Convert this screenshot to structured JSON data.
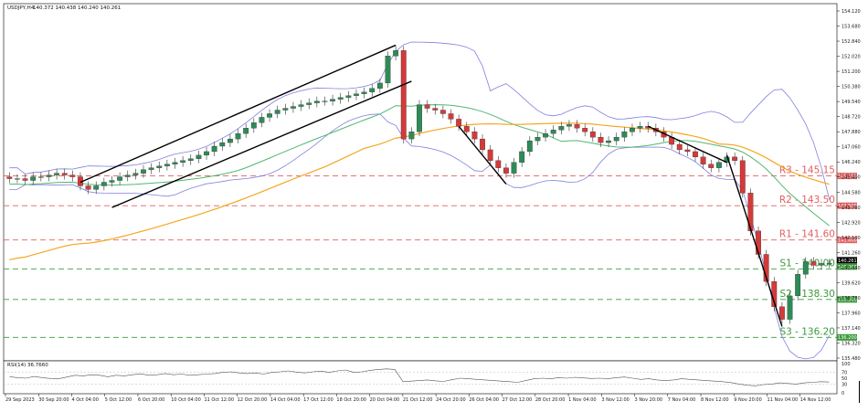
{
  "header": {
    "symbol": "USDJPY,H4",
    "ohlc": "140.372 140.438 140.240 140.261"
  },
  "price_axis": {
    "ticks": [
      "154.120",
      "153.680",
      "152.840",
      "152.020",
      "151.200",
      "150.380",
      "149.540",
      "148.720",
      "147.880",
      "147.060",
      "146.240",
      "145.400",
      "144.580",
      "143.760",
      "142.920",
      "142.100",
      "141.260",
      "140.440",
      "139.620",
      "138.780",
      "137.960",
      "137.140",
      "136.320",
      "135.480"
    ],
    "current_price_label": "140.261",
    "current_price_label_2": "140.000",
    "level_tags": {
      "r3": "145.150",
      "r2": "143.500",
      "r1": "141.600",
      "s2": "138.300",
      "s3": "136.200"
    }
  },
  "levels": [
    {
      "id": "r3",
      "label": "R3 - 145.15",
      "price": 145.15,
      "color": "#e06060",
      "kind": "resistance"
    },
    {
      "id": "r2",
      "label": "R2 - 143.50",
      "price": 143.5,
      "color": "#e06060",
      "kind": "resistance"
    },
    {
      "id": "r1",
      "label": "R1 - 141.60",
      "price": 141.6,
      "color": "#e06060",
      "kind": "resistance"
    },
    {
      "id": "s1",
      "label": "S1 - 140.00",
      "price": 140.0,
      "color": "#3a9a3a",
      "kind": "support"
    },
    {
      "id": "s2",
      "label": "S2 - 138.30",
      "price": 138.3,
      "color": "#3a9a3a",
      "kind": "support"
    },
    {
      "id": "s3",
      "label": "S3 - 136.20",
      "price": 136.2,
      "color": "#3a9a3a",
      "kind": "support"
    }
  ],
  "rsi": {
    "label": "RSI(14) 36.7660",
    "ticks": [
      "100",
      "70",
      "50",
      "30",
      "0"
    ],
    "values": [
      55,
      52,
      50,
      56,
      52,
      49,
      48,
      54,
      60,
      58,
      62,
      60,
      55,
      60,
      58,
      62,
      65,
      60,
      62,
      66,
      62,
      64,
      60,
      62,
      64,
      66,
      70,
      72,
      68,
      66,
      68,
      64,
      70,
      72,
      75,
      71,
      68,
      72,
      74,
      70,
      75,
      78,
      70,
      72,
      77,
      80,
      82,
      80,
      38,
      40,
      42,
      44,
      41,
      39,
      45,
      50,
      48,
      46,
      44,
      42,
      40,
      38,
      36,
      42,
      48,
      50,
      48,
      52,
      50,
      53,
      51,
      49,
      50,
      48,
      52,
      54,
      50,
      46,
      48,
      44,
      42,
      44,
      48,
      46,
      44,
      42,
      40,
      38,
      35,
      30,
      26,
      24,
      28,
      30,
      34,
      32,
      30,
      34,
      36,
      38,
      37
    ]
  },
  "x_axis": {
    "labels": [
      "29 Sep 2023",
      "30 Sep 20:00",
      "4 Oct 04:00",
      "5 Oct 12:00",
      "6 Oct 20:00",
      "10 Oct 04:00",
      "11 Oct 12:00",
      "12 Oct 20:00",
      "14 Oct 04:00",
      "17 Oct 12:00",
      "18 Oct 20:00",
      "20 Oct 04:00",
      "21 Oct 12:00",
      "24 Oct 20:00",
      "26 Oct 04:00",
      "27 Oct 12:00",
      "28 Oct 20:00",
      "1 Nov 04:00",
      "3 Nov 12:00",
      "3 Nov 20:00",
      "7 Nov 04:00",
      "8 Nov 12:00",
      "9 Nov 20:00",
      "11 Nov 04:00",
      "14 Nov 12:00"
    ]
  },
  "colors": {
    "bull": "#2e8b57",
    "bear": "#d43a3a",
    "bollinger": "#8080e0",
    "ma_green": "#50b870",
    "ma_orange": "#f5a623",
    "trendline": "#000000"
  },
  "chart_data": {
    "type": "line",
    "title": "USDJPY,H4",
    "ylim": [
      135.0,
      154.6
    ],
    "series": [
      {
        "values": [
          145.0,
          145.0,
          144.9,
          145.1,
          145.1,
          145.2,
          145.3,
          145.2,
          145.1,
          144.6,
          144.4,
          144.6,
          144.8,
          144.9,
          145.1,
          145.2,
          145.3,
          145.5,
          145.6,
          145.7,
          145.8,
          145.9,
          146.0,
          146.1,
          146.3,
          146.5,
          146.8,
          147.0,
          147.2,
          147.5,
          147.8,
          148.1,
          148.4,
          148.6,
          148.8,
          148.9,
          149.0,
          149.1,
          149.2,
          149.3,
          149.3,
          149.4,
          149.5,
          149.6,
          149.7,
          149.8,
          150.0,
          150.3,
          151.8,
          152.1,
          147.2,
          147.6,
          149.1,
          148.9,
          148.8,
          148.6,
          148.3,
          147.9,
          147.6,
          147.2,
          146.6,
          146.0,
          145.6,
          145.3,
          145.9,
          146.5,
          147.1,
          147.3,
          147.5,
          147.7,
          147.9,
          148.0,
          147.8,
          147.6,
          147.3,
          147.0,
          147.1,
          147.3,
          147.6,
          147.8,
          147.9,
          147.8,
          147.6,
          147.3,
          146.9,
          146.6,
          146.5,
          146.2,
          145.8,
          145.6,
          145.9,
          146.2,
          146.0,
          144.2,
          142.1,
          140.8,
          139.3,
          137.9,
          137.2,
          138.5,
          139.7,
          140.4,
          140.2,
          140.3,
          140.3
        ]
      }
    ]
  }
}
